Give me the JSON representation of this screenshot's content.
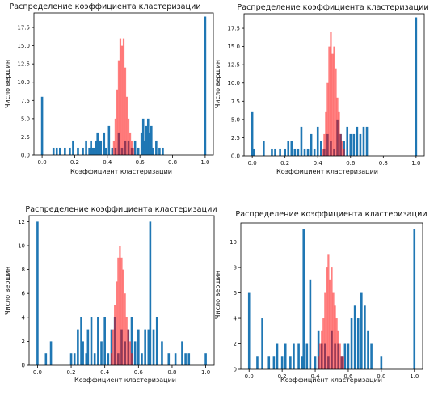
{
  "chart_data": [
    {
      "type": "bar",
      "title": "Распределение коэффициента кластеризации",
      "xlabel": "Коэффициент кластеризации",
      "ylabel": "Число вершин",
      "xlim": [
        -0.05,
        1.05
      ],
      "ylim": [
        0,
        19.5
      ],
      "xticks": [
        "0.0",
        "0.2",
        "0.4",
        "0.6",
        "0.8",
        "1.0"
      ],
      "yticks": [
        "0.0",
        "2.5",
        "5.0",
        "7.5",
        "10.0",
        "12.5",
        "15.0",
        "17.5"
      ],
      "series": [
        {
          "color": "#1f77b4",
          "x": [
            0.0,
            0.07,
            0.09,
            0.11,
            0.14,
            0.17,
            0.19,
            0.22,
            0.25,
            0.27,
            0.29,
            0.3,
            0.31,
            0.32,
            0.33,
            0.34,
            0.35,
            0.36,
            0.38,
            0.39,
            0.41,
            0.43,
            0.45,
            0.47,
            0.49,
            0.51,
            0.53,
            0.55,
            0.57,
            0.59,
            0.61,
            0.62,
            0.63,
            0.64,
            0.65,
            0.66,
            0.67,
            0.68,
            0.7,
            0.72,
            0.74,
            1.0
          ],
          "values": [
            8,
            1,
            1,
            1,
            1,
            1,
            2,
            1,
            1,
            2,
            1,
            2,
            1,
            1,
            2,
            3,
            2,
            2,
            3,
            1,
            4,
            1,
            1,
            3,
            1,
            2,
            2,
            1,
            2,
            1,
            3,
            5,
            2,
            4,
            5,
            3,
            4,
            1,
            2,
            1,
            1,
            19
          ]
        },
        {
          "color": "#ff0000",
          "x": [
            0.44,
            0.45,
            0.46,
            0.47,
            0.48,
            0.49,
            0.5,
            0.51,
            0.52,
            0.53,
            0.54,
            0.55,
            0.56
          ],
          "values": [
            2,
            5,
            9,
            13,
            16,
            15,
            16,
            12,
            8,
            5,
            3,
            2,
            1
          ]
        }
      ]
    },
    {
      "type": "bar",
      "title": "Распределение коэффициента кластеризации",
      "xlabel": "Коэффициент кластеризации",
      "ylabel": "Число вершин",
      "xlim": [
        -0.05,
        1.05
      ],
      "ylim": [
        0,
        19.5
      ],
      "xticks": [
        "0.0",
        "0.2",
        "0.4",
        "0.6",
        "0.8",
        "1.0"
      ],
      "yticks": [
        "0.0",
        "2.5",
        "5.0",
        "7.5",
        "10.0",
        "12.5",
        "15.0",
        "17.5"
      ],
      "series": [
        {
          "color": "#1f77b4",
          "x": [
            0.0,
            0.01,
            0.07,
            0.12,
            0.14,
            0.17,
            0.2,
            0.22,
            0.24,
            0.26,
            0.28,
            0.3,
            0.32,
            0.34,
            0.36,
            0.38,
            0.4,
            0.42,
            0.44,
            0.46,
            0.48,
            0.5,
            0.52,
            0.54,
            0.56,
            0.58,
            0.6,
            0.62,
            0.64,
            0.66,
            0.68,
            0.7,
            1.0
          ],
          "values": [
            6,
            1,
            2,
            1,
            1,
            1,
            1,
            2,
            2,
            1,
            1,
            4,
            1,
            1,
            3,
            1,
            4,
            2,
            1,
            3,
            2,
            1,
            5,
            3,
            2,
            4,
            3,
            3,
            4,
            3,
            4,
            4,
            19
          ]
        },
        {
          "color": "#ff0000",
          "x": [
            0.43,
            0.44,
            0.45,
            0.46,
            0.47,
            0.48,
            0.49,
            0.5,
            0.51,
            0.52,
            0.53,
            0.54,
            0.55,
            0.56
          ],
          "values": [
            1,
            3,
            6,
            10,
            15,
            17,
            14,
            15,
            12,
            8,
            6,
            3,
            2,
            1
          ]
        }
      ]
    },
    {
      "type": "bar",
      "title": "Распределение коэффициента кластеризации",
      "xlabel": "Коэффициент кластеризации",
      "ylabel": "Число вершин",
      "xlim": [
        -0.05,
        1.05
      ],
      "ylim": [
        0,
        12.5
      ],
      "xticks": [
        "0.0",
        "0.2",
        "0.4",
        "0.6",
        "0.8",
        "1.0"
      ],
      "yticks": [
        "0",
        "2",
        "4",
        "6",
        "8",
        "10",
        "12"
      ],
      "series": [
        {
          "color": "#1f77b4",
          "x": [
            0.0,
            0.05,
            0.08,
            0.2,
            0.22,
            0.24,
            0.26,
            0.27,
            0.29,
            0.3,
            0.32,
            0.34,
            0.36,
            0.38,
            0.4,
            0.42,
            0.44,
            0.46,
            0.48,
            0.5,
            0.52,
            0.54,
            0.56,
            0.58,
            0.6,
            0.62,
            0.64,
            0.66,
            0.67,
            0.69,
            0.71,
            0.74,
            0.78,
            0.82,
            0.86,
            0.88,
            0.9,
            1.0
          ],
          "values": [
            12,
            1,
            2,
            1,
            1,
            3,
            4,
            2,
            1,
            3,
            4,
            1,
            4,
            2,
            4,
            1,
            3,
            4,
            1,
            3,
            2,
            3,
            4,
            2,
            3,
            1,
            3,
            3,
            12,
            3,
            4,
            2,
            1,
            1,
            2,
            1,
            1,
            1
          ]
        },
        {
          "color": "#ff0000",
          "x": [
            0.44,
            0.45,
            0.46,
            0.47,
            0.48,
            0.49,
            0.5,
            0.51,
            0.52,
            0.53,
            0.54,
            0.55,
            0.56
          ],
          "values": [
            1,
            3,
            5,
            7,
            9,
            10,
            9,
            8,
            6,
            4,
            3,
            2,
            1
          ]
        }
      ]
    },
    {
      "type": "bar",
      "title": "Распределение коэффициента кластеризации",
      "xlabel": "Коэффициент кластеризации",
      "ylabel": "Число вершин",
      "xlim": [
        -0.05,
        1.05
      ],
      "ylim": [
        0,
        11.5
      ],
      "xticks": [
        "0.0",
        "0.2",
        "0.4",
        "0.6",
        "0.8",
        "1.0"
      ],
      "yticks": [
        "0",
        "2",
        "4",
        "6",
        "8",
        "10"
      ],
      "series": [
        {
          "color": "#1f77b4",
          "x": [
            0.0,
            0.05,
            0.08,
            0.12,
            0.15,
            0.17,
            0.2,
            0.22,
            0.25,
            0.27,
            0.3,
            0.32,
            0.33,
            0.35,
            0.37,
            0.4,
            0.42,
            0.44,
            0.46,
            0.48,
            0.5,
            0.52,
            0.54,
            0.56,
            0.58,
            0.6,
            0.62,
            0.64,
            0.66,
            0.68,
            0.7,
            0.72,
            0.74,
            0.8,
            1.0
          ],
          "values": [
            6,
            1,
            4,
            1,
            1,
            2,
            1,
            2,
            1,
            2,
            2,
            1,
            11,
            2,
            7,
            1,
            3,
            2,
            2,
            1,
            3,
            2,
            2,
            1,
            2,
            2,
            4,
            5,
            4,
            6,
            5,
            3,
            2,
            1,
            11
          ]
        },
        {
          "color": "#ff0000",
          "x": [
            0.42,
            0.43,
            0.44,
            0.45,
            0.46,
            0.47,
            0.48,
            0.49,
            0.5,
            0.51,
            0.52,
            0.53,
            0.54,
            0.55,
            0.56,
            0.57
          ],
          "values": [
            1,
            2,
            3,
            4,
            6,
            8,
            9,
            7,
            8,
            6,
            5,
            4,
            3,
            2,
            1,
            1
          ]
        }
      ]
    }
  ]
}
